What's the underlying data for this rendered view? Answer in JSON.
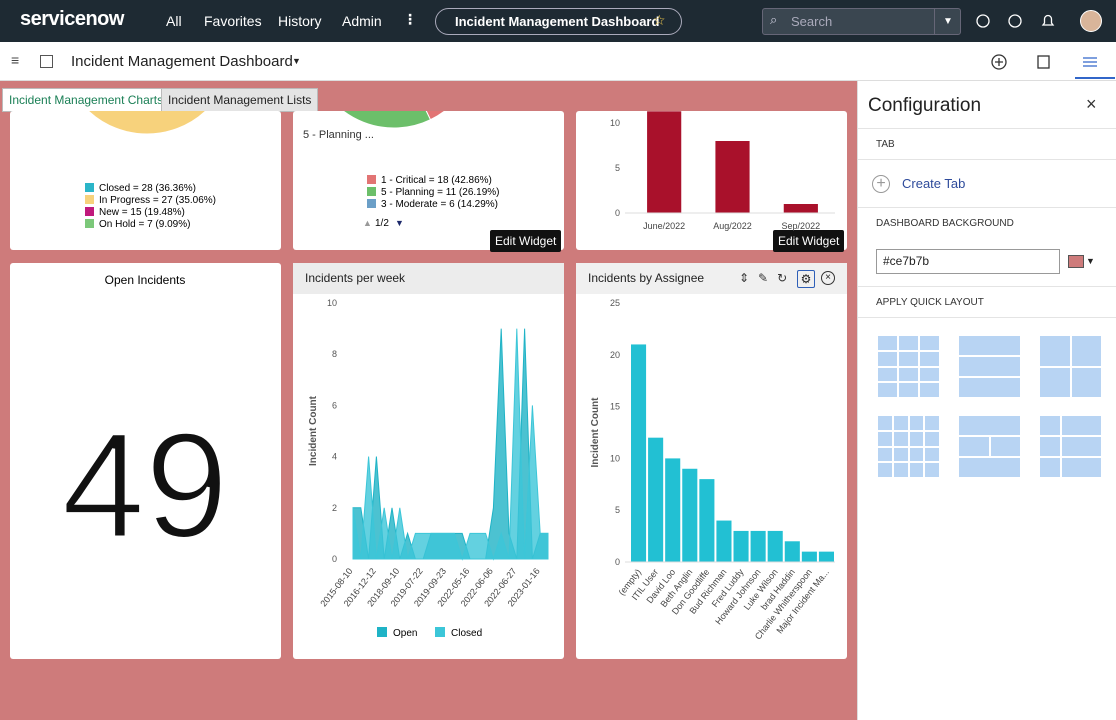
{
  "topbar": {
    "logo": "servicenow",
    "nav": [
      "All",
      "Favorites",
      "History",
      "Admin"
    ],
    "dashboard": "Incident Management Dashboard",
    "search": "Search"
  },
  "subheader": {
    "title": "Incident Management Dashboard"
  },
  "tabs": [
    "Incident Management Charts",
    "Incident Management Lists"
  ],
  "tooltips": [
    "Edit Widget",
    "Edit Widget"
  ],
  "chart_data": [
    {
      "type": "pie",
      "legend": [
        "Closed = 28 (36.36%)",
        "In Progress = 27 (35.06%)",
        "New = 15 (19.48%)",
        "On Hold = 7 (9.09%)"
      ],
      "values": [
        36.36,
        35.06,
        19.48,
        9.09
      ],
      "colors": [
        "#2bb5c8",
        "#f7d27c",
        "#c0197c",
        "#7cc87a"
      ]
    },
    {
      "type": "pie",
      "slice_label": "5 - Planning ...",
      "legend": [
        "1 - Critical = 18 (42.86%)",
        "5 - Planning = 11 (26.19%)",
        "3 - Moderate = 6 (14.29%)"
      ],
      "values": [
        42.86,
        26.19,
        14.29
      ],
      "colors": [
        "#e27474",
        "#6cbf6a",
        "#6b9fc7"
      ],
      "pager": "1/2"
    },
    {
      "type": "bar",
      "categories": [
        "June/2022",
        "Aug/2022",
        "Sep/2022"
      ],
      "values": [
        11.3,
        8,
        1
      ],
      "color": "#a9112b",
      "ylim": [
        0,
        12
      ],
      "yticks": [
        0,
        5,
        10
      ]
    },
    {
      "type": "score",
      "title": "Open Incidents",
      "value": 49
    },
    {
      "type": "area",
      "title": "Incidents per week",
      "y_label": "Incident Count",
      "categories": [
        "2015-08-10",
        null,
        null,
        "2016-12-12",
        null,
        null,
        "2018-09-10",
        null,
        null,
        "2019-07-22",
        null,
        null,
        "2019-09-23",
        null,
        null,
        "2022-05-16",
        null,
        null,
        "2022-06-06",
        null,
        null,
        "2022-06-27",
        null,
        null,
        "2023-01-16",
        null
      ],
      "series": [
        {
          "name": "Open",
          "color": "#1fb3c6",
          "values": [
            2,
            2,
            0,
            4,
            0,
            2,
            0,
            1,
            0,
            0,
            1,
            1,
            1,
            1,
            1,
            0,
            0,
            0,
            2,
            9,
            1,
            0,
            9,
            0,
            1,
            1
          ]
        },
        {
          "name": "Closed",
          "color": "#3cc6d8",
          "values": [
            2,
            0,
            4,
            0,
            2,
            0,
            2,
            0,
            1,
            1,
            1,
            1,
            1,
            1,
            0,
            1,
            1,
            1,
            0,
            1,
            0,
            9,
            0,
            6,
            1,
            1
          ]
        }
      ],
      "ylim": [
        0,
        10
      ],
      "yticks": [
        0,
        2,
        4,
        6,
        8,
        10
      ]
    },
    {
      "type": "bar",
      "title": "Incidents by Assignee",
      "y_label": "Incident Count",
      "categories": [
        "(empty)",
        "ITIL User",
        "David Loo",
        "Beth Anglin",
        "Don Goodliffe",
        "Bud Richman",
        "Fred Luddy",
        "Howard Johnson",
        "Luke Wilson",
        "brad Haddin",
        "Charlie Whitherspoon",
        "Major Incident Ma..."
      ],
      "values": [
        21,
        12,
        10,
        9,
        8,
        4,
        3,
        3,
        3,
        2,
        1,
        1
      ],
      "color": "#22c0d3",
      "ylim": [
        0,
        25
      ],
      "yticks": [
        0,
        5,
        10,
        15,
        20,
        25
      ]
    }
  ],
  "configuration": {
    "title": "Configuration",
    "tab_section": "TAB",
    "create_tab": "Create Tab",
    "background_section": "DASHBOARD BACKGROUND",
    "background": "#ce7b7b",
    "layout_section": "APPLY QUICK LAYOUT"
  }
}
